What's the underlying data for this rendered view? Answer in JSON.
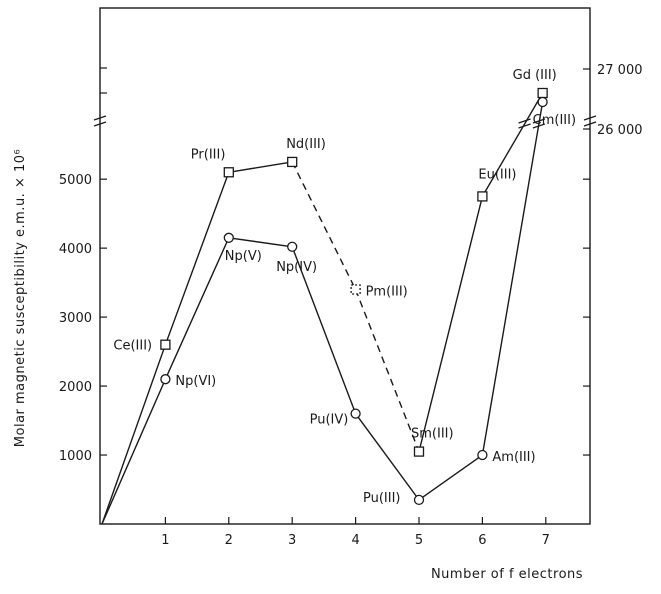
{
  "chart_data": {
    "type": "line",
    "xlabel": "Number of f electrons",
    "ylabel": "Molar magnetic susceptibility e.m.u. × 10⁶",
    "x_ticks": [
      "1",
      "2",
      "3",
      "4",
      "5",
      "6",
      "7"
    ],
    "y_ticks": [
      "1000",
      "2000",
      "3000",
      "4000",
      "5000"
    ],
    "y_right_ticks": [
      "26 000",
      "27 000"
    ],
    "xlim": [
      0,
      7.5
    ],
    "ylim": [
      0,
      5800
    ],
    "y_right_range": [
      25950,
      27150
    ],
    "axis_break": "between 5800 and 25950",
    "grid": false,
    "legend": "none",
    "series": [
      {
        "marker": "square",
        "points": [
          {
            "x": 0,
            "y": 0,
            "label": ""
          },
          {
            "x": 1,
            "y": 2600,
            "label": "Ce(III)",
            "style": "solid"
          },
          {
            "x": 2,
            "y": 5100,
            "label": "Pr(III)",
            "style": "solid"
          },
          {
            "x": 3,
            "y": 5250,
            "label": "Nd(III)",
            "style": "solid"
          },
          {
            "x": 4,
            "y": 3400,
            "label": "Pm(III)",
            "style": "dashed"
          },
          {
            "x": 5,
            "y": 1050,
            "label": "Sm(III)",
            "style": "dashed"
          },
          {
            "x": 6,
            "y": 4750,
            "label": "Eu(III)",
            "style": "solid"
          },
          {
            "x": 6.95,
            "y": 26600,
            "label": "Gd (III)",
            "style": "solid"
          }
        ]
      },
      {
        "marker": "circle",
        "points": [
          {
            "x": 0,
            "y": 0,
            "label": ""
          },
          {
            "x": 1,
            "y": 2100,
            "label": "Np(VI)",
            "style": "solid"
          },
          {
            "x": 2,
            "y": 4150,
            "label": "Np(V)",
            "style": "solid"
          },
          {
            "x": 3,
            "y": 4020,
            "label": "Np(IV)",
            "style": "solid"
          },
          {
            "x": 4,
            "y": 1600,
            "label": "Pu(IV)",
            "style": "solid"
          },
          {
            "x": 5,
            "y": 350,
            "label": "Pu(III)",
            "style": "solid"
          },
          {
            "x": 6,
            "y": 1000,
            "label": "Am(III)",
            "style": "solid"
          },
          {
            "x": 6.95,
            "y": 26450,
            "label": "Cm(III)",
            "style": "solid"
          }
        ]
      }
    ]
  }
}
